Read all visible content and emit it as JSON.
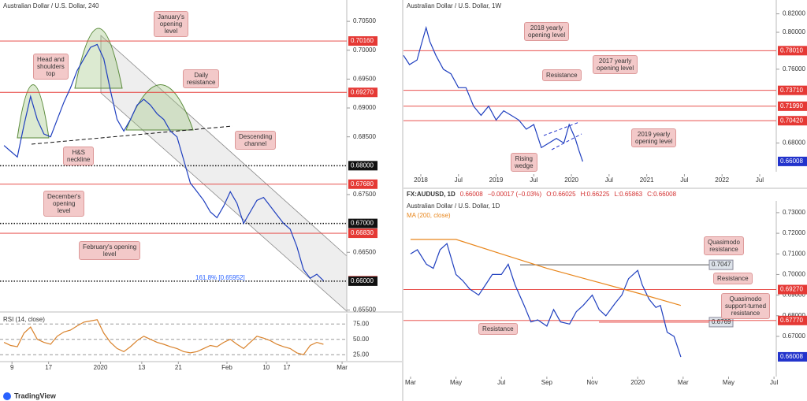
{
  "chart_data": [
    {
      "type": "line",
      "title": "Australian Dollar / U.S. Dollar, 240",
      "x": [
        0,
        1,
        2,
        3,
        4,
        5,
        6,
        7,
        8,
        9,
        10,
        11,
        12,
        13,
        14,
        15,
        16,
        17,
        18,
        19,
        20,
        21,
        22,
        23,
        24,
        25,
        26,
        27,
        28,
        29,
        30,
        31,
        32,
        33,
        34,
        35,
        36,
        37,
        38,
        39,
        40,
        41,
        42,
        43,
        44,
        45,
        46,
        47,
        48
      ],
      "series": [
        {
          "color": "#1f3fbf",
          "values": [
            0.6835,
            0.6825,
            0.6815,
            0.687,
            0.692,
            0.688,
            0.6855,
            0.685,
            0.688,
            0.691,
            0.6935,
            0.6965,
            0.6985,
            0.7005,
            0.701,
            0.6985,
            0.693,
            0.688,
            0.686,
            0.688,
            0.6905,
            0.6915,
            0.6905,
            0.689,
            0.688,
            0.686,
            0.685,
            0.681,
            0.677,
            0.6755,
            0.674,
            0.672,
            0.671,
            0.673,
            0.6755,
            0.6735,
            0.67,
            0.672,
            0.674,
            0.6745,
            0.673,
            0.6715,
            0.67,
            0.669,
            0.666,
            0.662,
            0.6605,
            0.6612,
            0.6601
          ]
        }
      ],
      "xlim": [
        -0.6,
        51.5
      ],
      "ylim": [
        0.6548,
        0.7087
      ],
      "xticks": [
        {
          "value": 1.2,
          "label": "9"
        },
        {
          "value": 6.7,
          "label": "17"
        },
        {
          "value": 14.5,
          "label": "2020"
        },
        {
          "value": 20.7,
          "label": "13"
        },
        {
          "value": 26.2,
          "label": "21"
        },
        {
          "value": 33.5,
          "label": "Feb"
        },
        {
          "value": 39.4,
          "label": "10"
        },
        {
          "value": 42.5,
          "label": "17"
        },
        {
          "value": 50.8,
          "label": "Mar"
        }
      ],
      "yticks": [
        {
          "value": 0.705,
          "label": "0.70500"
        },
        {
          "value": 0.7,
          "label": "0.70000"
        },
        {
          "value": 0.695,
          "label": "0.69500"
        },
        {
          "value": 0.69,
          "label": "0.69000"
        },
        {
          "value": 0.685,
          "label": "0.68500"
        },
        {
          "value": 0.675,
          "label": "0.67500"
        },
        {
          "value": 0.665,
          "label": "0.66500"
        },
        {
          "value": 0.655,
          "label": "0.65500"
        }
      ],
      "levels": [
        {
          "value": 0.7016,
          "label": "0.70160",
          "color": "#e53935",
          "style": "solid"
        },
        {
          "value": 0.6927,
          "label": "0.69270",
          "color": "#e53935",
          "style": "solid"
        },
        {
          "value": 0.68,
          "label": "0.68000",
          "color": "#111111",
          "style": "dotted"
        },
        {
          "value": 0.6768,
          "label": "0.67680",
          "color": "#e53935",
          "style": "solid"
        },
        {
          "value": 0.67,
          "label": "0.67000",
          "color": "#111111",
          "style": "dotted"
        },
        {
          "value": 0.6683,
          "label": "0.66830",
          "color": "#e53935",
          "style": "solid"
        },
        {
          "value": 0.66008,
          "label": "0.66008",
          "color": "#e53935",
          "style": "none"
        },
        {
          "value": 0.66,
          "label": "0.66000",
          "color": "#111111",
          "style": "dotted"
        }
      ],
      "annotations": [
        "January's\nopening\nlevel",
        "Head and\nshoulders\ntop",
        "Daily\nresistance",
        "H&S\nneckline",
        "Descending\nchannel",
        "December's\nopening\nlevel",
        "February's opening\nlevel"
      ],
      "note": "161.8% [0.65952]"
    },
    {
      "type": "line",
      "title": "RSI (14, close)",
      "x": [
        0,
        1,
        2,
        3,
        4,
        5,
        6,
        7,
        8,
        9,
        10,
        11,
        12,
        13,
        14,
        15,
        16,
        17,
        18,
        19,
        20,
        21,
        22,
        23,
        24,
        25,
        26,
        27,
        28,
        29,
        30,
        31,
        32,
        33,
        34,
        35,
        36,
        37,
        38,
        39,
        40,
        41,
        42,
        43,
        44,
        45,
        46,
        47,
        48
      ],
      "series": [
        {
          "color": "#d9822b",
          "values": [
            45,
            40,
            38,
            60,
            70,
            50,
            45,
            42,
            55,
            62,
            65,
            72,
            78,
            80,
            82,
            60,
            45,
            35,
            30,
            38,
            48,
            55,
            50,
            45,
            42,
            38,
            35,
            30,
            28,
            30,
            35,
            40,
            38,
            45,
            50,
            42,
            35,
            45,
            55,
            52,
            48,
            42,
            38,
            35,
            28,
            25,
            40,
            45,
            42
          ]
        }
      ],
      "xlim": [
        -0.6,
        51.5
      ],
      "ylim": [
        15,
        92
      ],
      "yticks": [
        {
          "value": 75,
          "label": "75.00"
        },
        {
          "value": 50,
          "label": "50.00"
        },
        {
          "value": 25,
          "label": "25.00"
        }
      ],
      "grid": true
    },
    {
      "type": "line",
      "title": "Australian Dollar / U.S. Dollar, 1W",
      "x": [
        2017.77,
        2017.85,
        2017.95,
        2018.0,
        2018.07,
        2018.12,
        2018.2,
        2018.3,
        2018.4,
        2018.5,
        2018.6,
        2018.7,
        2018.8,
        2018.9,
        2019.0,
        2019.1,
        2019.2,
        2019.3,
        2019.4,
        2019.5,
        2019.6,
        2019.7,
        2019.8,
        2019.9,
        2019.97,
        2020.05,
        2020.1,
        2020.15
      ],
      "series": [
        {
          "color": "#1f3fbf",
          "values": [
            0.775,
            0.765,
            0.77,
            0.785,
            0.805,
            0.79,
            0.775,
            0.76,
            0.755,
            0.74,
            0.74,
            0.72,
            0.71,
            0.72,
            0.705,
            0.715,
            0.71,
            0.705,
            0.695,
            0.7,
            0.675,
            0.68,
            0.685,
            0.68,
            0.7,
            0.685,
            0.672,
            0.66
          ]
        }
      ],
      "xlim": [
        2017.77,
        2022.72
      ],
      "ylim": [
        0.6489,
        0.835
      ],
      "xticks": [
        {
          "value": 2018,
          "label": "2018"
        },
        {
          "value": 2018.5,
          "label": "Jul"
        },
        {
          "value": 2019,
          "label": "2019"
        },
        {
          "value": 2019.5,
          "label": "Jul"
        },
        {
          "value": 2020,
          "label": "2020"
        },
        {
          "value": 2020.5,
          "label": "Jul"
        },
        {
          "value": 2021,
          "label": "2021"
        },
        {
          "value": 2021.5,
          "label": "Jul"
        },
        {
          "value": 2022,
          "label": "2022"
        },
        {
          "value": 2022.5,
          "label": "Jul"
        }
      ],
      "yticks": [
        {
          "value": 0.82,
          "label": "0.82000"
        },
        {
          "value": 0.8,
          "label": "0.80000"
        },
        {
          "value": 0.76,
          "label": "0.76000"
        },
        {
          "value": 0.68,
          "label": "0.68000"
        }
      ],
      "levels": [
        {
          "value": 0.7801,
          "label": "0.78010",
          "color": "#e53935",
          "style": "solid"
        },
        {
          "value": 0.7371,
          "label": "0.73710",
          "color": "#e53935",
          "style": "solid"
        },
        {
          "value": 0.7199,
          "label": "0.71990",
          "color": "#e53935",
          "style": "solid"
        },
        {
          "value": 0.7042,
          "label": "0.70420",
          "color": "#e53935",
          "style": "solid"
        },
        {
          "value": 0.66008,
          "label": "0.66008",
          "color": "#2233cc",
          "style": "none"
        }
      ],
      "annotations": [
        "2018 yearly\nopening level",
        "2017 yearly\nopening level",
        "Resistance",
        "2019 yearly\nopening level",
        "Rising\nwedge"
      ]
    },
    {
      "type": "line",
      "title": "Australian Dollar / U.S. Dollar, 1D",
      "symbol": "FX:AUDUSD, 1D",
      "quote": [
        "0.66008",
        "−0.00017 (−0.03%)",
        "O:0.66025",
        "H:0.66225",
        "L:0.65863",
        "C:0.66008"
      ],
      "x": [
        0,
        0.3,
        0.7,
        1.0,
        1.3,
        1.6,
        2.0,
        2.3,
        2.6,
        3.0,
        3.3,
        3.6,
        4.0,
        4.3,
        4.6,
        5.0,
        5.3,
        5.6,
        6.0,
        6.3,
        6.6,
        7.0,
        7.3,
        7.6,
        8.0,
        8.3,
        8.6,
        9.0,
        9.3,
        9.6,
        10.0,
        10.2,
        10.5,
        10.8,
        11.0,
        11.3,
        11.6,
        11.9
      ],
      "series": [
        {
          "color": "#1f3fbf",
          "values": [
            0.71,
            0.712,
            0.705,
            0.703,
            0.712,
            0.715,
            0.7,
            0.697,
            0.693,
            0.69,
            0.695,
            0.7,
            0.7,
            0.705,
            0.695,
            0.685,
            0.677,
            0.678,
            0.675,
            0.683,
            0.677,
            0.676,
            0.682,
            0.685,
            0.69,
            0.683,
            0.68,
            0.686,
            0.69,
            0.698,
            0.702,
            0.695,
            0.688,
            0.684,
            0.685,
            0.672,
            0.67,
            0.66
          ]
        },
        {
          "name": "MA (200, close)",
          "color": "#e8861c",
          "x": [
            0,
            2,
            4,
            6,
            8,
            10,
            11.9
          ],
          "values": [
            0.717,
            0.717,
            0.71,
            0.703,
            0.697,
            0.691,
            0.685
          ]
        }
      ],
      "xlim": [
        -0.31,
        16.1
      ],
      "ylim": [
        0.6505,
        0.7357
      ],
      "xticks": [
        {
          "value": 0,
          "label": "Mar"
        },
        {
          "value": 2,
          "label": "May"
        },
        {
          "value": 4,
          "label": "Jul"
        },
        {
          "value": 6,
          "label": "Sep"
        },
        {
          "value": 8,
          "label": "Nov"
        },
        {
          "value": 10,
          "label": "2020"
        },
        {
          "value": 12,
          "label": "Mar"
        },
        {
          "value": 14,
          "label": "May"
        },
        {
          "value": 16,
          "label": "Jul"
        }
      ],
      "yticks": [
        {
          "value": 0.73,
          "label": "0.73000"
        },
        {
          "value": 0.72,
          "label": "0.72000"
        },
        {
          "value": 0.71,
          "label": "0.71000"
        },
        {
          "value": 0.7,
          "label": "0.70000"
        },
        {
          "value": 0.69,
          "label": "0.69000"
        },
        {
          "value": 0.68,
          "label": "0.68000"
        },
        {
          "value": 0.67,
          "label": "0.67000"
        }
      ],
      "levels": [
        {
          "value": 0.7047,
          "label": "0.7047",
          "color": "#555555",
          "style": "box"
        },
        {
          "value": 0.6927,
          "label": "0.69270",
          "color": "#e53935",
          "style": "solid"
        },
        {
          "value": 0.6769,
          "label": "0.6769",
          "color": "#e53935",
          "style": "box"
        },
        {
          "value": 0.6777,
          "label": "0.67770",
          "color": "#e53935",
          "style": "solid"
        },
        {
          "value": 0.66008,
          "label": "0.66008",
          "color": "#2233cc",
          "style": "none"
        }
      ],
      "annotations": [
        "Quasimodo\nresistance",
        "Resistance",
        "Quasimodo\nsupport-turned\nresistance",
        "Resistance"
      ]
    }
  ],
  "footer": "TradingView"
}
